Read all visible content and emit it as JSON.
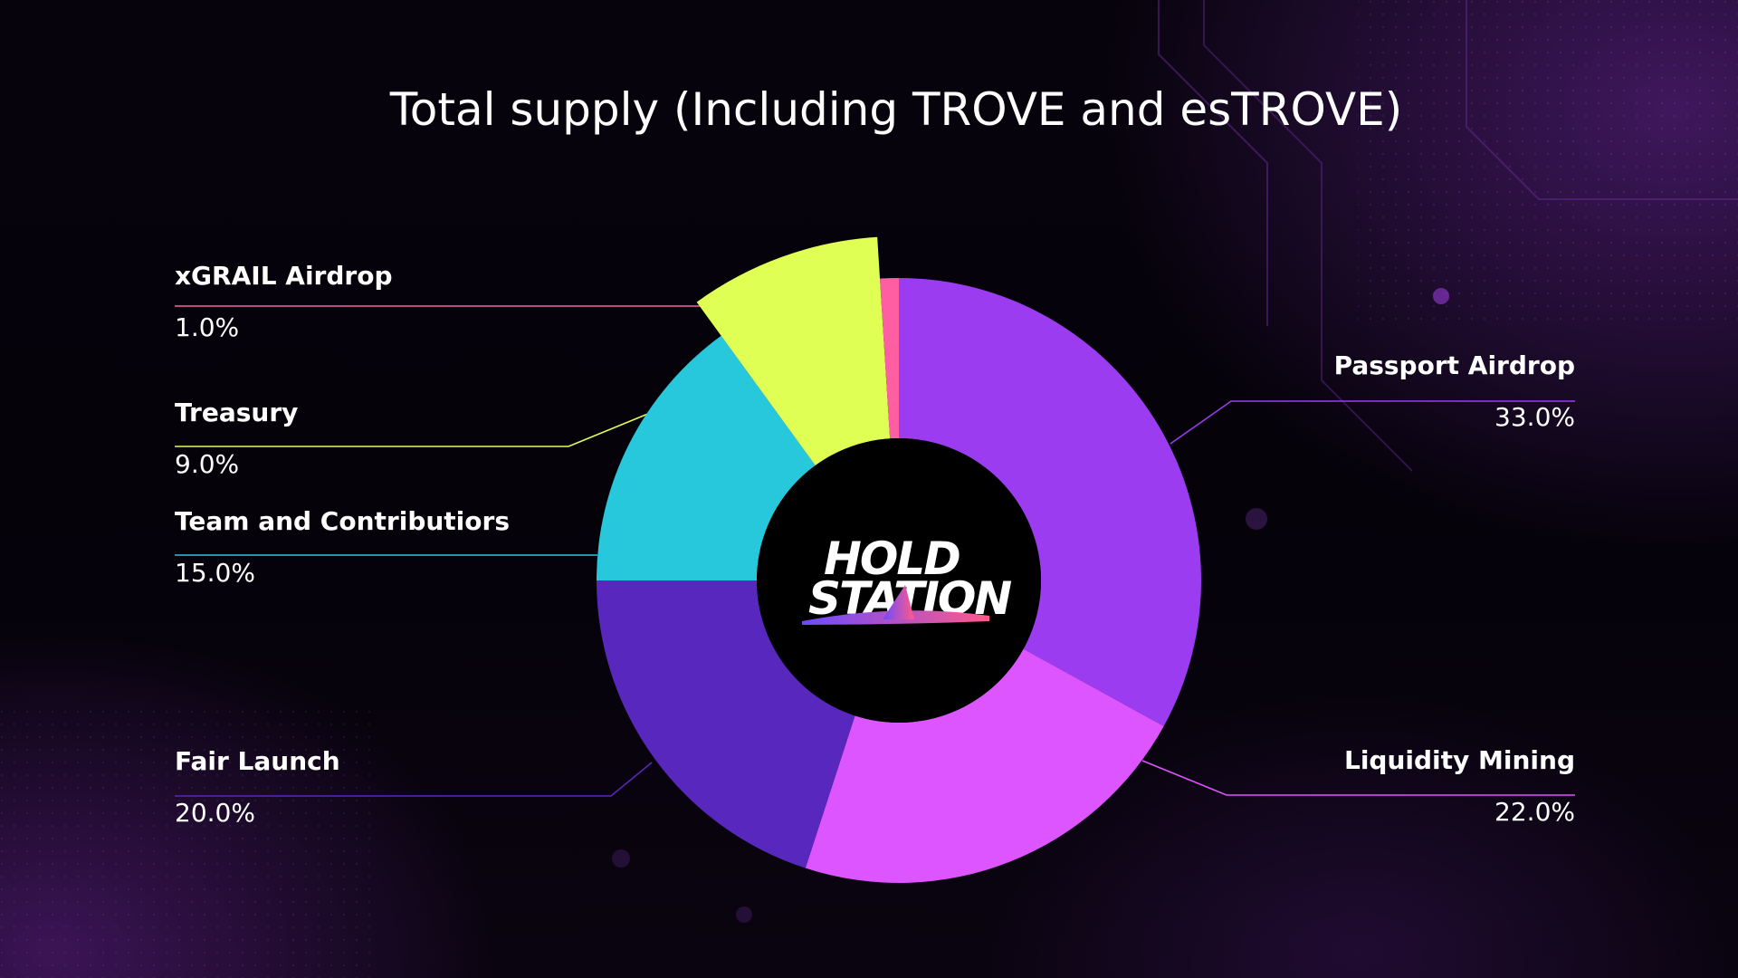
{
  "logo": {
    "line1": "HOLD",
    "line2": "STATION",
    "colors": {
      "gradient_start": "#6a4bff",
      "gradient_end": "#ff5a8a"
    }
  },
  "chart_data": {
    "type": "pie",
    "title": "Total supply (Including TROVE and esTROVE)",
    "start_angle_deg": 0,
    "slices": [
      {
        "name": "Passport Airdrop",
        "value": 33.0,
        "label": "33.0%",
        "color": "#9b3cf0",
        "side": "right"
      },
      {
        "name": "Liquidity Mining",
        "value": 22.0,
        "label": "22.0%",
        "color": "#dd55ff",
        "side": "right"
      },
      {
        "name": "Fair Launch",
        "value": 20.0,
        "label": "20.0%",
        "color": "#5827bd",
        "side": "left"
      },
      {
        "name": "Team and Contributiors",
        "value": 15.0,
        "label": "15.0%",
        "color": "#28c8dc",
        "side": "left"
      },
      {
        "name": "Treasury",
        "value": 9.0,
        "label": "9.0%",
        "color": "#e0ff55",
        "side": "left",
        "exploded": true
      },
      {
        "name": "xGRAIL Airdrop",
        "value": 1.0,
        "label": "1.0%",
        "color": "#ff5fa2",
        "side": "left"
      }
    ]
  }
}
